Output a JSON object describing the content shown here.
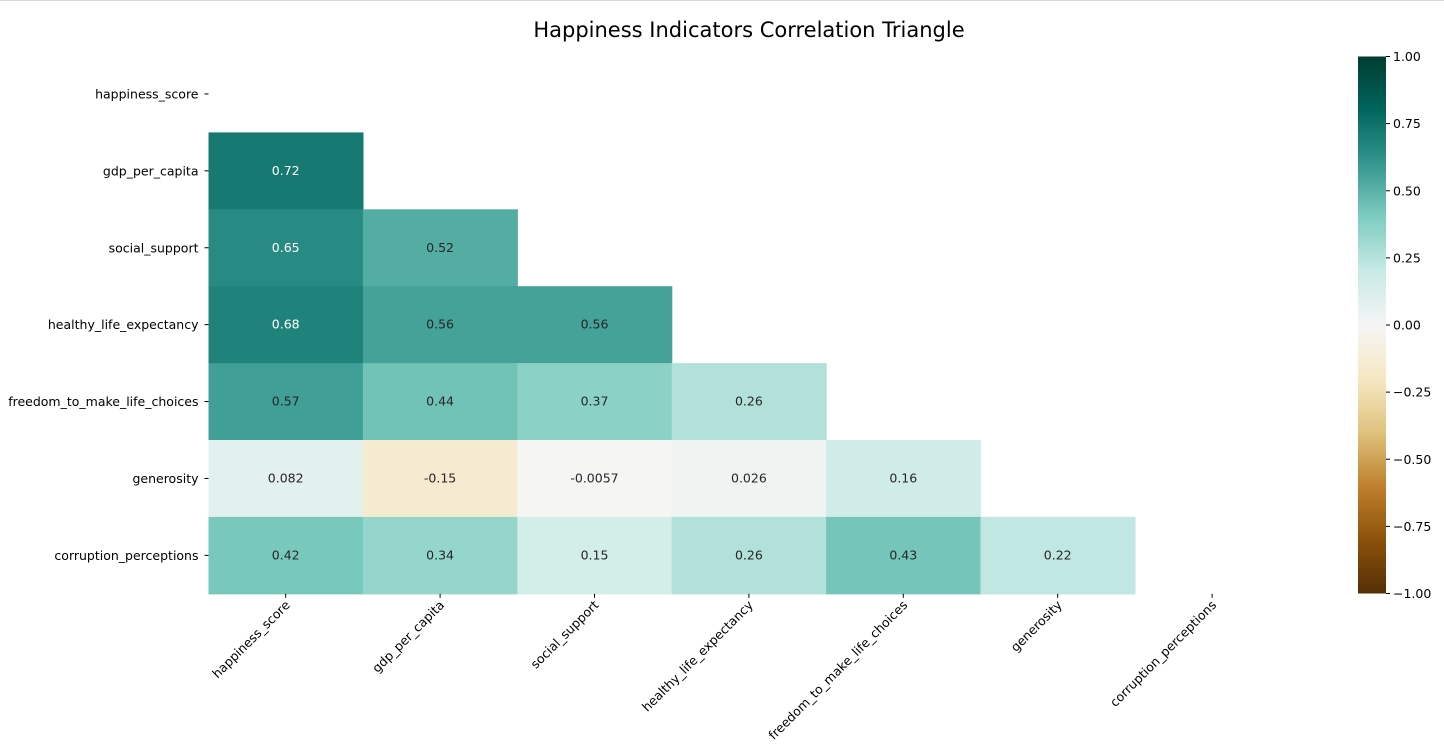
{
  "chart_data": {
    "type": "heatmap",
    "title": "Happiness Indicators Correlation Triangle",
    "variables": [
      "happiness_score",
      "gdp_per_capita",
      "social_support",
      "healthy_life_expectancy",
      "freedom_to_make_life_choices",
      "generosity",
      "corruption_perceptions"
    ],
    "mask": "upper-triangle-including-diagonal",
    "matrix": [
      [
        null,
        null,
        null,
        null,
        null,
        null,
        null
      ],
      [
        "0.72",
        null,
        null,
        null,
        null,
        null,
        null
      ],
      [
        "0.65",
        "0.52",
        null,
        null,
        null,
        null,
        null
      ],
      [
        "0.68",
        "0.56",
        "0.56",
        null,
        null,
        null,
        null
      ],
      [
        "0.57",
        "0.44",
        "0.37",
        "0.26",
        null,
        null,
        null
      ],
      [
        "0.082",
        "-0.15",
        "-0.0057",
        "0.026",
        "0.16",
        null,
        null
      ],
      [
        "0.42",
        "0.34",
        "0.15",
        "0.26",
        "0.43",
        "0.22",
        null
      ]
    ],
    "colormap": "BrBG",
    "vmin": -1,
    "vmax": 1,
    "colorbar_ticks": [
      "1.00",
      "0.75",
      "0.50",
      "0.25",
      "0.00",
      "−0.25",
      "−0.50",
      "−0.75",
      "−1.00"
    ]
  }
}
